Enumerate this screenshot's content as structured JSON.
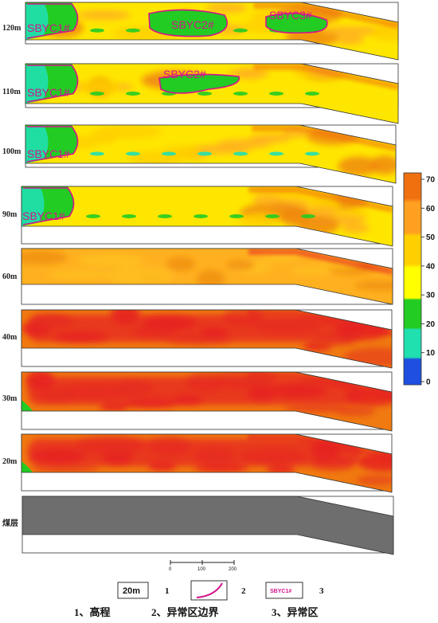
{
  "panels": [
    {
      "label": "120m",
      "zones": [
        "SBYC1#",
        "SBYC2#",
        "SBYC3#"
      ]
    },
    {
      "label": "110m",
      "zones": [
        "SBYC1#",
        "SBYC2#"
      ]
    },
    {
      "label": "100m",
      "zones": [
        "SBYC1#"
      ]
    },
    {
      "label": "90m",
      "zones": [
        "SBYC1#"
      ]
    },
    {
      "label": "60m",
      "zones": []
    },
    {
      "label": "40m",
      "zones": []
    },
    {
      "label": "30m",
      "zones": []
    },
    {
      "label": "20m",
      "zones": []
    },
    {
      "label": "煤层",
      "zones": []
    }
  ],
  "colorbar": {
    "ticks": [
      "70",
      "60",
      "50",
      "40",
      "30",
      "20",
      "10",
      "0"
    ],
    "colors": [
      "#1f4fe0",
      "#20e0b0",
      "#22cc22",
      "#ffff00",
      "#ffd000",
      "#ffa020",
      "#f07010",
      "#e62020"
    ]
  },
  "scale_bar": {
    "ticks": [
      "0",
      "100",
      "200"
    ]
  },
  "legend": {
    "item1": {
      "box_text": "20m",
      "number": "1",
      "caption": "1、高程"
    },
    "item2": {
      "number": "2",
      "caption": "2、异常区边界"
    },
    "item3": {
      "box_text": "SBYC1#",
      "number": "3",
      "caption": "3、异常区"
    }
  },
  "colors": {
    "boundary": "#d4148c",
    "coal_seam": "#6e6e6e",
    "anomaly_green": "#22cc22",
    "anomaly_cyan": "#20e0b0"
  }
}
